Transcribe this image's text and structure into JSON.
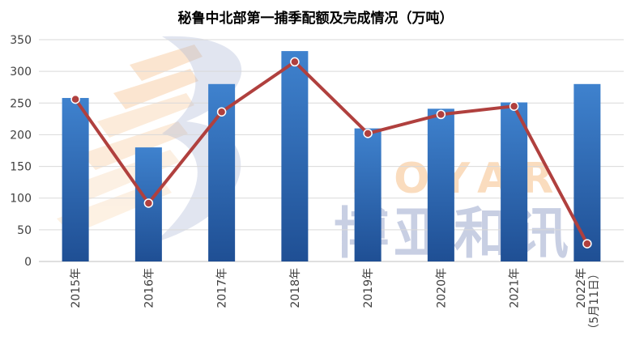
{
  "chart_data": {
    "type": "bar",
    "title": "秘鲁中北部第一捕季配额及完成情况（万吨）",
    "categories": [
      "2015年",
      "2016年",
      "2017年",
      "2018年",
      "2019年",
      "2020年",
      "2021年",
      "2022年（5月11日）"
    ],
    "category_lines": [
      [
        "2015年"
      ],
      [
        "2016年"
      ],
      [
        "2017年"
      ],
      [
        "2018年"
      ],
      [
        "2019年"
      ],
      [
        "2020年"
      ],
      [
        "2021年"
      ],
      [
        "2022年",
        "（5月11日）"
      ]
    ],
    "series": [
      {
        "type": "bar",
        "values": [
          258,
          180,
          280,
          332,
          210,
          241,
          251,
          280
        ],
        "color": "#2E6DB7"
      },
      {
        "type": "line",
        "values": [
          256,
          92,
          236,
          315,
          202,
          232,
          245,
          28
        ],
        "color": "#B0403E"
      }
    ],
    "ylim": [
      0,
      350
    ],
    "yticks": [
      0,
      50,
      100,
      150,
      200,
      250,
      300,
      350
    ],
    "grid": true,
    "legend": "none"
  },
  "watermark": {
    "latin": "BOYAR",
    "chinese": "博亚和讯"
  }
}
